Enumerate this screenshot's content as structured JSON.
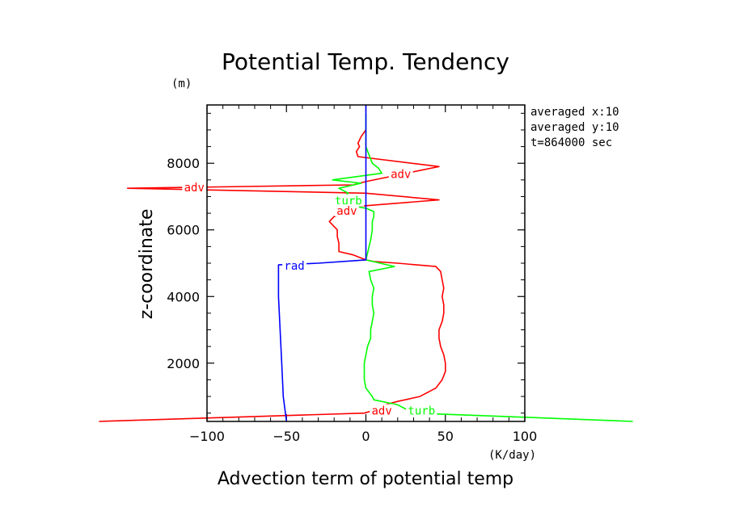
{
  "chart_data": {
    "type": "line",
    "title": "Potential Temp. Tendency",
    "xlabel": "Advection term of potential temp",
    "ylabel": "z-coordinate",
    "x_unit": "(K/day)",
    "y_unit": "(m)",
    "xlim": [
      -100,
      100
    ],
    "ylim": [
      250,
      9750
    ],
    "x_ticks": [
      -100,
      -50,
      0,
      50,
      100
    ],
    "y_ticks": [
      2000,
      4000,
      6000,
      8000
    ],
    "info": [
      "averaged  x:10",
      "averaged  y:10",
      "t=864000 sec"
    ],
    "series": [
      {
        "name": "adv",
        "color": "#ff0000",
        "points": [
          [
            -168,
            250
          ],
          [
            -84,
            375
          ],
          [
            -1,
            500
          ],
          [
            6,
            600
          ],
          [
            12,
            750
          ],
          [
            20,
            850
          ],
          [
            34,
            1000
          ],
          [
            44,
            1250
          ],
          [
            48,
            1500
          ],
          [
            50,
            1750
          ],
          [
            50,
            2000
          ],
          [
            49,
            2250
          ],
          [
            47,
            2500
          ],
          [
            46,
            2750
          ],
          [
            46,
            3000
          ],
          [
            48,
            3250
          ],
          [
            49,
            3500
          ],
          [
            49,
            3750
          ],
          [
            48,
            4000
          ],
          [
            49,
            4250
          ],
          [
            48,
            4500
          ],
          [
            47,
            4750
          ],
          [
            44,
            4900
          ],
          [
            20,
            5000
          ],
          [
            5,
            5050
          ],
          [
            0,
            5100
          ],
          [
            -8,
            5250
          ],
          [
            -17,
            5350
          ],
          [
            -17,
            5600
          ],
          [
            -18,
            5800
          ],
          [
            -18,
            6000
          ],
          [
            -23,
            6250
          ],
          [
            -20,
            6400
          ],
          [
            -13,
            6500
          ],
          [
            -7,
            6700
          ],
          [
            46,
            6900
          ],
          [
            0,
            7100
          ],
          [
            -150,
            7250
          ],
          [
            -8,
            7350
          ],
          [
            0,
            7450
          ],
          [
            46,
            7900
          ],
          [
            -5,
            8200
          ],
          [
            -6,
            8350
          ],
          [
            -4,
            8500
          ],
          [
            -5,
            8600
          ],
          [
            -3,
            8800
          ],
          [
            0,
            9000
          ]
        ]
      },
      {
        "name": "turb",
        "color": "#00ff00",
        "points": [
          [
            168,
            250
          ],
          [
            100,
            375
          ],
          [
            30,
            500
          ],
          [
            20,
            750
          ],
          [
            5,
            900
          ],
          [
            4,
            1000
          ],
          [
            0,
            1250
          ],
          [
            -1,
            1500
          ],
          [
            -1,
            1750
          ],
          [
            -1,
            2000
          ],
          [
            0,
            2250
          ],
          [
            1,
            2500
          ],
          [
            3,
            2750
          ],
          [
            3,
            3000
          ],
          [
            4,
            3250
          ],
          [
            5,
            3500
          ],
          [
            4,
            3750
          ],
          [
            4,
            4000
          ],
          [
            5,
            4250
          ],
          [
            3,
            4500
          ],
          [
            2,
            4750
          ],
          [
            18,
            4900
          ],
          [
            0,
            5100
          ],
          [
            1,
            5300
          ],
          [
            2,
            5500
          ],
          [
            3,
            5700
          ],
          [
            4,
            6000
          ],
          [
            4,
            6250
          ],
          [
            5,
            6400
          ],
          [
            5,
            6550
          ],
          [
            0,
            6650
          ],
          [
            -18,
            6800
          ],
          [
            -15,
            6950
          ],
          [
            -11,
            7100
          ],
          [
            -17,
            7250
          ],
          [
            -3,
            7400
          ],
          [
            -21,
            7500
          ],
          [
            10,
            7700
          ],
          [
            8,
            7850
          ],
          [
            4,
            8000
          ],
          [
            2,
            8250
          ],
          [
            0,
            8500
          ],
          [
            0,
            9000
          ],
          [
            0,
            9500
          ]
        ]
      },
      {
        "name": "rad",
        "color": "#0000ff",
        "points": [
          [
            -50,
            250
          ],
          [
            -52,
            1000
          ],
          [
            -53,
            2000
          ],
          [
            -54,
            3000
          ],
          [
            -55,
            4000
          ],
          [
            -55,
            4950
          ],
          [
            -30,
            5000
          ],
          [
            0,
            5100
          ],
          [
            0,
            6000
          ],
          [
            0,
            7000
          ],
          [
            0,
            8000
          ],
          [
            0,
            9000
          ],
          [
            0,
            9750
          ]
        ]
      }
    ],
    "annotations": [
      {
        "text": "adv",
        "x": 22,
        "y": 7650,
        "color": "#ff0000"
      },
      {
        "text": "adv",
        "x": -108,
        "y": 7250,
        "color": "#ff0000"
      },
      {
        "text": "turb",
        "x": -11,
        "y": 6850,
        "color": "#00ff00"
      },
      {
        "text": "adv",
        "x": -12,
        "y": 6550,
        "color": "#ff0000"
      },
      {
        "text": "rad",
        "x": -45,
        "y": 4900,
        "color": "#0000ff"
      },
      {
        "text": "adv",
        "x": 10,
        "y": 550,
        "color": "#ff0000"
      },
      {
        "text": "turb",
        "x": 35,
        "y": 550,
        "color": "#00ff00"
      }
    ]
  }
}
